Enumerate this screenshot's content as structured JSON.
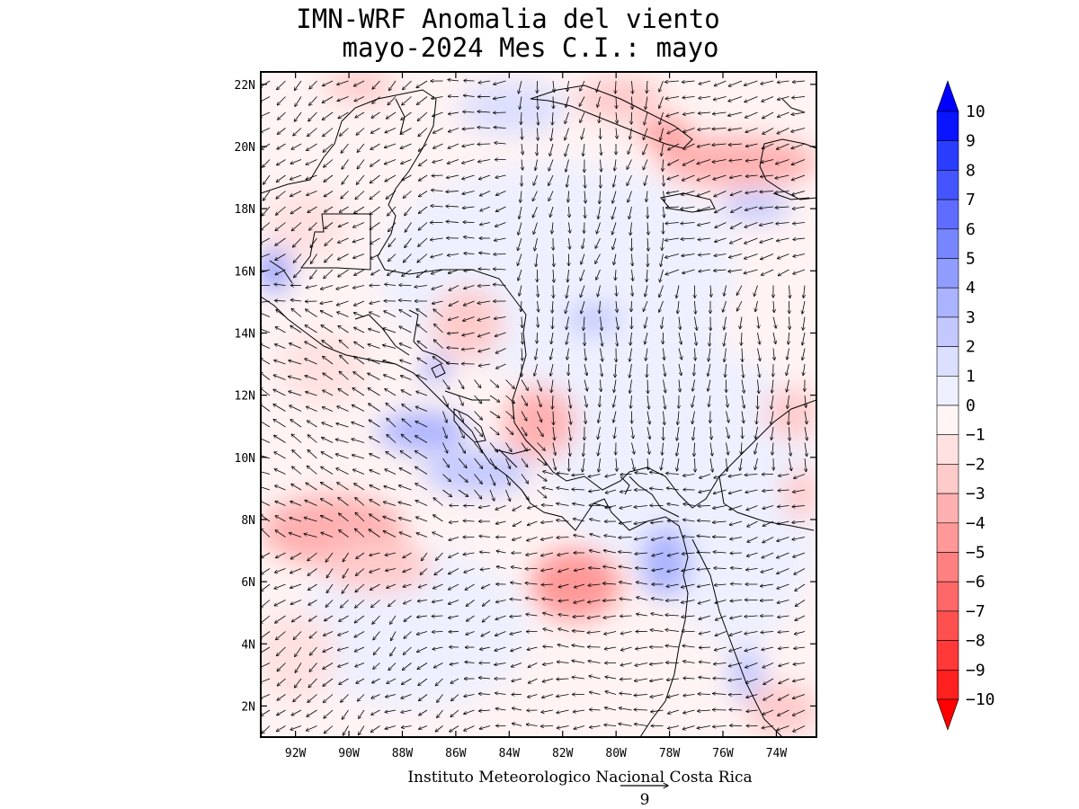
{
  "title": {
    "line1": "IMN-WRF Anomalia del viento",
    "line2": "mayo-2024 Mes C.I.: mayo"
  },
  "axes": {
    "lat_labels": [
      "22N",
      "20N",
      "18N",
      "16N",
      "14N",
      "12N",
      "10N",
      "8N",
      "6N",
      "4N",
      "2N"
    ],
    "lat_values": [
      22,
      20,
      18,
      16,
      14,
      12,
      10,
      8,
      6,
      4,
      2
    ],
    "lon_labels": [
      "92W",
      "90W",
      "88W",
      "86W",
      "84W",
      "82W",
      "80W",
      "78W",
      "76W",
      "74W"
    ],
    "lon_values": [
      -92,
      -90,
      -88,
      -86,
      -84,
      -82,
      -80,
      -78,
      -76,
      -74
    ],
    "lat_range": [
      1,
      22.4
    ],
    "lon_range": [
      -93.3,
      -72.5
    ]
  },
  "colorbar": {
    "labels": [
      "10",
      "9",
      "8",
      "7",
      "6",
      "5",
      "4",
      "3",
      "2",
      "1",
      "0",
      "-1",
      "-2",
      "-3",
      "-4",
      "-5",
      "-6",
      "-7",
      "-8",
      "-9",
      "-10"
    ],
    "colors": [
      "#0a14ff",
      "#2a3dff",
      "#4455ff",
      "#5e6dff",
      "#7786ff",
      "#919cff",
      "#aab3ff",
      "#c3c9ff",
      "#dcdfff",
      "#eef0ff",
      "#fff5f5",
      "#ffe1e1",
      "#ffcaca",
      "#ffb0b0",
      "#ff9898",
      "#ff8080",
      "#ff6868",
      "#ff5050",
      "#ff3838",
      "#ff2020"
    ],
    "top_arrow_color": "#0000ff",
    "bottom_arrow_color": "#ff0000"
  },
  "footer": {
    "institution": "Instituto Meteorologico Nacional Costa Rica",
    "ref_vector_label": "9"
  }
}
